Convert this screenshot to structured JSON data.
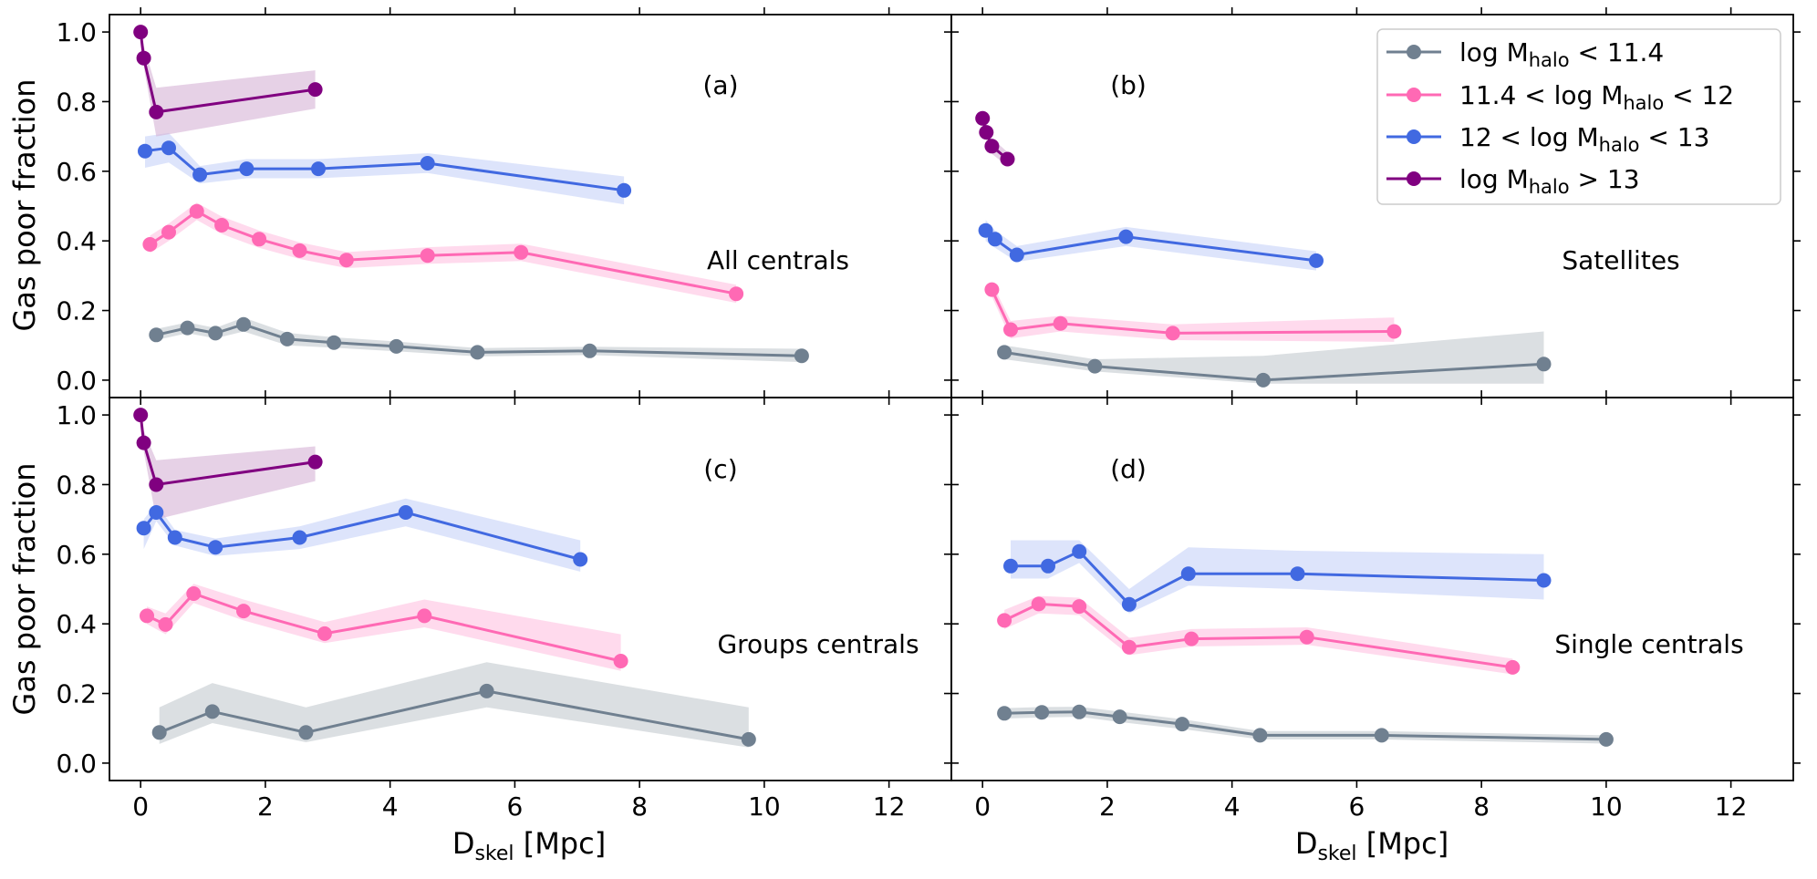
{
  "colors": {
    "series": [
      "#708090",
      "#ff69b4",
      "#4169e1",
      "#800080"
    ],
    "bands": [
      "#c3c9ce",
      "#ffc2e1",
      "#c6d2f8",
      "#d6b3d6"
    ]
  },
  "legend": {
    "location": "top-right of panel (b)",
    "entries": [
      {
        "prefix": "log M",
        "sub": "halo",
        "suffix": " < 11.4"
      },
      {
        "prefix": "11.4 < log M",
        "sub": "halo",
        "suffix": " < 12"
      },
      {
        "prefix": "12 < log M",
        "sub": "halo",
        "suffix": " < 13"
      },
      {
        "prefix": "log M",
        "sub": "halo",
        "suffix": " > 13"
      }
    ]
  },
  "xaxis": {
    "label_main": "D",
    "label_sub": "skel",
    "label_rest": " [Mpc]"
  },
  "yaxis": {
    "label": "Gas poor fraction"
  },
  "chart_data": [
    {
      "type": "line",
      "id": "a",
      "letter": "(a)",
      "annotation": "All centrals",
      "xlim": [
        -0.5,
        13
      ],
      "ylim": [
        -0.05,
        1.05
      ],
      "xticks": [
        0,
        2,
        4,
        6,
        8,
        10,
        12
      ],
      "yticks": [
        0.0,
        0.2,
        0.4,
        0.6,
        0.8,
        1.0
      ],
      "series": [
        {
          "x": [
            0.25,
            0.75,
            1.2,
            1.65,
            2.35,
            3.1,
            4.1,
            5.4,
            7.2,
            10.6
          ],
          "y": [
            0.13,
            0.15,
            0.135,
            0.16,
            0.118,
            0.108,
            0.097,
            0.08,
            0.084,
            0.07
          ],
          "lo": [
            0.115,
            0.135,
            0.12,
            0.14,
            0.1,
            0.093,
            0.083,
            0.068,
            0.072,
            0.052
          ],
          "hi": [
            0.147,
            0.166,
            0.15,
            0.18,
            0.136,
            0.123,
            0.111,
            0.092,
            0.096,
            0.09
          ]
        },
        {
          "x": [
            0.15,
            0.45,
            0.9,
            1.3,
            1.9,
            2.55,
            3.3,
            4.6,
            6.1,
            9.55
          ],
          "y": [
            0.39,
            0.425,
            0.485,
            0.445,
            0.405,
            0.372,
            0.345,
            0.358,
            0.367,
            0.248
          ],
          "lo": [
            0.365,
            0.4,
            0.46,
            0.42,
            0.38,
            0.348,
            0.322,
            0.334,
            0.342,
            0.222
          ],
          "hi": [
            0.415,
            0.45,
            0.51,
            0.47,
            0.43,
            0.396,
            0.368,
            0.382,
            0.392,
            0.274
          ]
        },
        {
          "x": [
            0.07,
            0.45,
            0.95,
            1.7,
            2.85,
            4.6,
            7.75
          ],
          "y": [
            0.658,
            0.667,
            0.59,
            0.607,
            0.607,
            0.623,
            0.545
          ],
          "lo": [
            0.61,
            0.625,
            0.565,
            0.58,
            0.58,
            0.595,
            0.505
          ],
          "hi": [
            0.7,
            0.71,
            0.615,
            0.635,
            0.635,
            0.652,
            0.585
          ]
        },
        {
          "x": [
            0.0,
            0.05,
            0.25,
            2.8
          ],
          "y": [
            1.0,
            0.925,
            0.77,
            0.835
          ],
          "lo": [
            1.0,
            0.9,
            0.7,
            0.78
          ],
          "hi": [
            1.0,
            0.96,
            0.84,
            0.89
          ]
        }
      ]
    },
    {
      "type": "line",
      "id": "b",
      "letter": "(b)",
      "annotation": "Satellites",
      "xlim": [
        -0.5,
        13
      ],
      "ylim": [
        -0.05,
        1.05
      ],
      "xticks": [
        0,
        2,
        4,
        6,
        8,
        10,
        12
      ],
      "yticks": [
        0.0,
        0.2,
        0.4,
        0.6,
        0.8,
        1.0
      ],
      "series": [
        {
          "x": [
            0.35,
            1.8,
            4.5,
            9.0
          ],
          "y": [
            0.08,
            0.04,
            0.0,
            0.046
          ],
          "lo": [
            0.06,
            0.025,
            -0.01,
            -0.01
          ],
          "hi": [
            0.1,
            0.06,
            0.07,
            0.14
          ]
        },
        {
          "x": [
            0.15,
            0.45,
            1.25,
            3.05,
            6.6
          ],
          "y": [
            0.26,
            0.145,
            0.163,
            0.135,
            0.14
          ],
          "lo": [
            0.24,
            0.12,
            0.14,
            0.115,
            0.11
          ],
          "hi": [
            0.28,
            0.17,
            0.185,
            0.16,
            0.18
          ]
        },
        {
          "x": [
            0.05,
            0.2,
            0.55,
            2.3,
            5.35
          ],
          "y": [
            0.43,
            0.405,
            0.36,
            0.412,
            0.343
          ],
          "lo": [
            0.4,
            0.38,
            0.34,
            0.385,
            0.315
          ],
          "hi": [
            0.46,
            0.43,
            0.385,
            0.44,
            0.37
          ]
        },
        {
          "x": [
            0.0,
            0.06,
            0.15,
            0.4
          ],
          "y": [
            0.752,
            0.712,
            0.672,
            0.635
          ],
          "lo": [
            0.73,
            0.69,
            0.65,
            0.615
          ],
          "hi": [
            0.775,
            0.735,
            0.695,
            0.655
          ]
        }
      ]
    },
    {
      "type": "line",
      "id": "c",
      "letter": "(c)",
      "annotation": "Groups centrals",
      "xlim": [
        -0.5,
        13
      ],
      "ylim": [
        -0.05,
        1.05
      ],
      "xticks": [
        0,
        2,
        4,
        6,
        8,
        10,
        12
      ],
      "yticks": [
        0.0,
        0.2,
        0.4,
        0.6,
        0.8,
        1.0
      ],
      "series": [
        {
          "x": [
            0.3,
            1.15,
            2.65,
            5.55,
            9.75
          ],
          "y": [
            0.088,
            0.148,
            0.088,
            0.207,
            0.068
          ],
          "lo": [
            0.055,
            0.115,
            0.06,
            0.16,
            0.045
          ],
          "hi": [
            0.16,
            0.23,
            0.16,
            0.29,
            0.16
          ]
        },
        {
          "x": [
            0.1,
            0.4,
            0.85,
            1.65,
            2.95,
            4.55,
            7.7
          ],
          "y": [
            0.423,
            0.398,
            0.487,
            0.437,
            0.372,
            0.423,
            0.293
          ],
          "lo": [
            0.4,
            0.37,
            0.46,
            0.41,
            0.345,
            0.39,
            0.265
          ],
          "hi": [
            0.45,
            0.43,
            0.515,
            0.47,
            0.405,
            0.47,
            0.37
          ]
        },
        {
          "x": [
            0.05,
            0.25,
            0.55,
            1.2,
            2.55,
            4.25,
            7.05
          ],
          "y": [
            0.675,
            0.72,
            0.648,
            0.62,
            0.648,
            0.72,
            0.585
          ],
          "lo": [
            0.615,
            0.695,
            0.625,
            0.595,
            0.615,
            0.68,
            0.55
          ],
          "hi": [
            0.7,
            0.745,
            0.67,
            0.645,
            0.68,
            0.76,
            0.64
          ]
        },
        {
          "x": [
            0.0,
            0.05,
            0.25,
            2.8
          ],
          "y": [
            1.0,
            0.92,
            0.8,
            0.865
          ],
          "lo": [
            1.0,
            0.895,
            0.7,
            0.81
          ],
          "hi": [
            1.0,
            0.955,
            0.87,
            0.91
          ]
        }
      ]
    },
    {
      "type": "line",
      "id": "d",
      "letter": "(d)",
      "annotation": "Single centrals",
      "xlim": [
        -0.5,
        13
      ],
      "ylim": [
        -0.05,
        1.05
      ],
      "xticks": [
        0,
        2,
        4,
        6,
        8,
        10,
        12
      ],
      "yticks": [
        0.0,
        0.2,
        0.4,
        0.6,
        0.8,
        1.0
      ],
      "series": [
        {
          "x": [
            0.35,
            0.95,
            1.55,
            2.2,
            3.2,
            4.45,
            6.4,
            10.0
          ],
          "y": [
            0.143,
            0.146,
            0.147,
            0.133,
            0.112,
            0.08,
            0.08,
            0.068
          ],
          "lo": [
            0.128,
            0.131,
            0.133,
            0.118,
            0.098,
            0.068,
            0.068,
            0.056
          ],
          "hi": [
            0.158,
            0.161,
            0.162,
            0.148,
            0.126,
            0.092,
            0.092,
            0.08
          ]
        },
        {
          "x": [
            0.35,
            0.9,
            1.55,
            2.35,
            3.35,
            5.2,
            8.5
          ],
          "y": [
            0.41,
            0.457,
            0.45,
            0.333,
            0.357,
            0.362,
            0.275
          ],
          "lo": [
            0.385,
            0.43,
            0.425,
            0.31,
            0.335,
            0.34,
            0.255
          ],
          "hi": [
            0.44,
            0.48,
            0.475,
            0.36,
            0.385,
            0.39,
            0.3
          ]
        },
        {
          "x": [
            0.45,
            1.05,
            1.55,
            2.35,
            3.3,
            5.05,
            9.0
          ],
          "y": [
            0.566,
            0.566,
            0.608,
            0.456,
            0.544,
            0.544,
            0.525
          ],
          "lo": [
            0.53,
            0.53,
            0.575,
            0.43,
            0.51,
            0.5,
            0.47
          ],
          "hi": [
            0.64,
            0.64,
            0.64,
            0.5,
            0.62,
            0.61,
            0.6
          ]
        }
      ]
    }
  ]
}
